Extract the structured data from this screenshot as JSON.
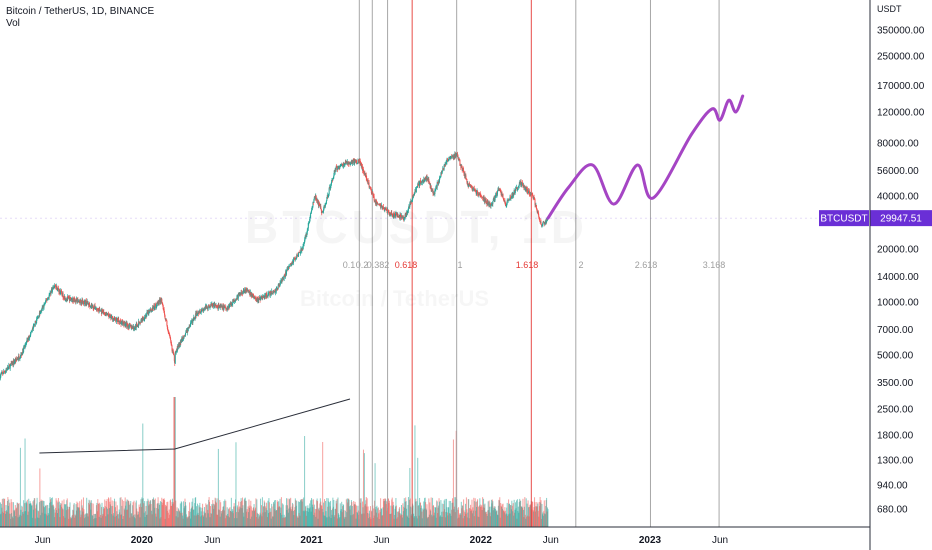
{
  "header": {
    "symbol_line": "Bitcoin / TetherUS, 1D, BINANCE",
    "indicator": "Vol"
  },
  "watermark": {
    "symbol": "BTCUSDT, 1D",
    "name": "Bitcoin / TetherUS"
  },
  "price_label": {
    "symbol": "BTCUSDT",
    "value": "29947.51",
    "color": "#6a2fd6"
  },
  "colors": {
    "up": "#26a69a",
    "down": "#ef5350",
    "projection": "#a545c4",
    "fib_gray": "#9e9e9e",
    "fib_red": "#e53935"
  },
  "chart_data": {
    "type": "line",
    "title": "Bitcoin / TetherUS, 1D, BINANCE",
    "y_axis_unit": "USDT",
    "y_scale": "log",
    "y_ticks": [
      {
        "value": 350000,
        "label": "350000.00"
      },
      {
        "value": 250000,
        "label": "250000.00"
      },
      {
        "value": 170000,
        "label": "170000.00"
      },
      {
        "value": 120000,
        "label": "120000.00"
      },
      {
        "value": 80000,
        "label": "80000.00"
      },
      {
        "value": 56000,
        "label": "56000.00"
      },
      {
        "value": 40000,
        "label": "40000.00"
      },
      {
        "value": 20000,
        "label": "20000.00"
      },
      {
        "value": 14000,
        "label": "14000.00"
      },
      {
        "value": 10000,
        "label": "10000.00"
      },
      {
        "value": 7000,
        "label": "7000.00"
      },
      {
        "value": 5000,
        "label": "5000.00"
      },
      {
        "value": 3500,
        "label": "3500.00"
      },
      {
        "value": 2500,
        "label": "2500.00"
      },
      {
        "value": 1800,
        "label": "1800.00"
      },
      {
        "value": 1300,
        "label": "1300.00"
      },
      {
        "value": 940,
        "label": "940.00"
      },
      {
        "value": 680,
        "label": "680.00"
      }
    ],
    "x_ticks": [
      "Jun",
      "2020",
      "Jun",
      "2021",
      "Jun",
      "2022",
      "Jun",
      "2023",
      "Jun"
    ],
    "x_tick_dates": [
      "2019-06",
      "2020-01",
      "2020-06",
      "2021-01",
      "2021-06",
      "2022-01",
      "2022-06",
      "2023-01",
      "2023-06"
    ],
    "price_series": [
      [
        "2019-03-01",
        3800
      ],
      [
        "2019-04-15",
        5000
      ],
      [
        "2019-05-20",
        8000
      ],
      [
        "2019-06-26",
        12500
      ],
      [
        "2019-07-20",
        10500
      ],
      [
        "2019-09-01",
        10000
      ],
      [
        "2019-10-25",
        8200
      ],
      [
        "2019-12-15",
        7100
      ],
      [
        "2020-01-15",
        8700
      ],
      [
        "2020-02-12",
        10300
      ],
      [
        "2020-03-12",
        4600
      ],
      [
        "2020-03-13",
        5200
      ],
      [
        "2020-04-30",
        8800
      ],
      [
        "2020-06-01",
        9600
      ],
      [
        "2020-07-01",
        9200
      ],
      [
        "2020-08-10",
        11800
      ],
      [
        "2020-09-05",
        10300
      ],
      [
        "2020-10-15",
        11500
      ],
      [
        "2020-11-15",
        16000
      ],
      [
        "2020-12-15",
        21000
      ],
      [
        "2021-01-08",
        40000
      ],
      [
        "2021-01-25",
        32000
      ],
      [
        "2021-02-21",
        57000
      ],
      [
        "2021-03-13",
        61000
      ],
      [
        "2021-04-14",
        63500
      ],
      [
        "2021-05-19",
        37000
      ],
      [
        "2021-06-22",
        31500
      ],
      [
        "2021-07-20",
        30000
      ],
      [
        "2021-08-20",
        47000
      ],
      [
        "2021-09-07",
        51000
      ],
      [
        "2021-09-21",
        41000
      ],
      [
        "2021-10-20",
        65000
      ],
      [
        "2021-11-10",
        68500
      ],
      [
        "2021-12-04",
        47000
      ],
      [
        "2022-01-22",
        35000
      ],
      [
        "2022-02-10",
        44000
      ],
      [
        "2022-02-24",
        36000
      ],
      [
        "2022-03-28",
        47500
      ],
      [
        "2022-04-25",
        39000
      ],
      [
        "2022-05-12",
        27000
      ],
      [
        "2022-05-26",
        29947.51
      ]
    ],
    "projection_series": [
      [
        "2022-05-26",
        29947.51
      ],
      [
        "2022-07-10",
        45000
      ],
      [
        "2022-08-30",
        60000
      ],
      [
        "2022-10-15",
        36000
      ],
      [
        "2022-12-05",
        60000
      ],
      [
        "2023-01-08",
        39000
      ],
      [
        "2023-04-01",
        90000
      ],
      [
        "2023-05-15",
        125000
      ],
      [
        "2023-06-01",
        108000
      ],
      [
        "2023-06-20",
        140000
      ],
      [
        "2023-07-05",
        120000
      ],
      [
        "2023-07-20",
        148000
      ]
    ],
    "fib_time_zones": [
      {
        "label": "0.1",
        "date": "2021-04-14",
        "color": "gray"
      },
      {
        "label": "0.236",
        "date": "2021-05-12",
        "color": "gray"
      },
      {
        "label": "0.382",
        "date": "2021-06-14",
        "color": "gray"
      },
      {
        "label": "0.618",
        "date": "2021-08-06",
        "color": "red"
      },
      {
        "label": "1",
        "date": "2021-11-10",
        "color": "gray"
      },
      {
        "label": "1.618",
        "date": "2022-04-20",
        "color": "red"
      },
      {
        "label": "2",
        "date": "2022-07-25",
        "color": "gray"
      },
      {
        "label": "2.618",
        "date": "2023-01-02",
        "color": "gray"
      },
      {
        "label": "3.168",
        "date": "2023-05-30",
        "color": "gray"
      }
    ],
    "fib_label_texts": [
      "0.1",
      "0.2",
      "0.382",
      "0.618",
      "1",
      "1.618",
      "2",
      "2.618",
      "3.168"
    ],
    "trend_line": [
      [
        "2019-05-25",
        1600
      ],
      [
        "2020-03-12",
        1650
      ],
      [
        "2021-03-25",
        2700
      ]
    ],
    "legend": "none",
    "grid": false
  }
}
